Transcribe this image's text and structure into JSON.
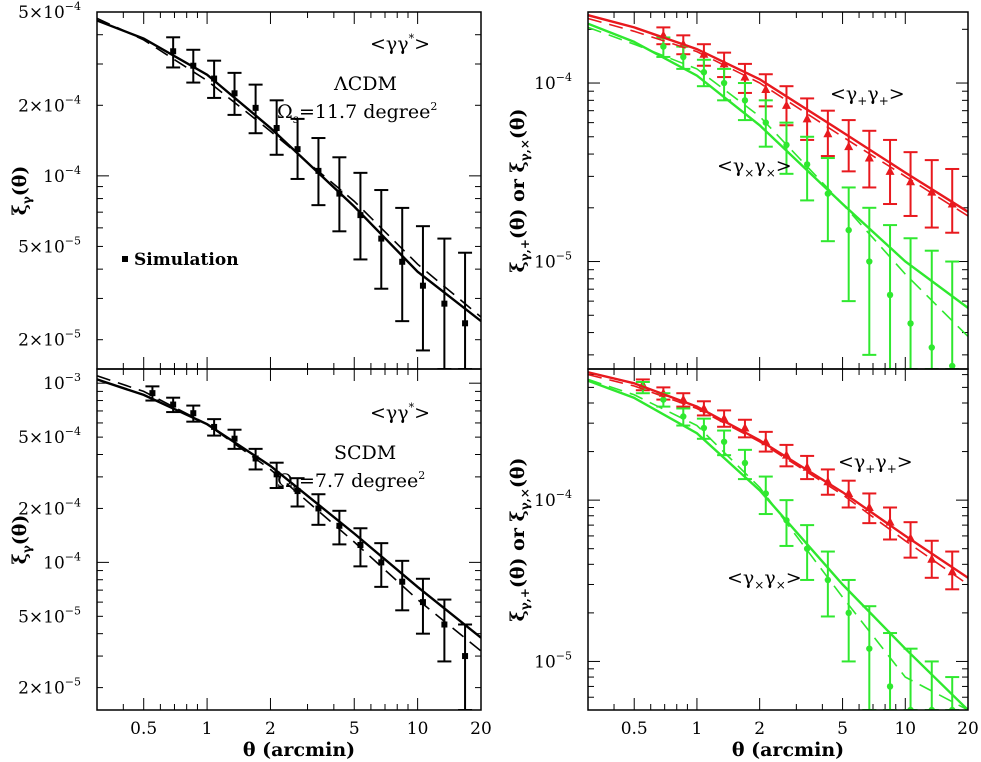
{
  "colors": {
    "black": "#000000",
    "red": "#e8191e",
    "green": "#2fe82f"
  },
  "x_tick_labels": [
    "0.5",
    "1",
    "2",
    "5",
    "10",
    "20"
  ],
  "x_label": "θ (arcmin)",
  "chart_data": [
    {
      "type": "scatter",
      "panel": "top-left",
      "xlim": [
        0.3,
        20
      ],
      "ylim": [
        1.5e-05,
        0.0005
      ],
      "xscale": "log",
      "yscale": "log",
      "ylabel": "ξγ(θ)",
      "y_ticks": [
        {
          "value": 0.0005,
          "label": "5×10",
          "exp": "−4"
        },
        {
          "value": 0.0002,
          "label": "2×10",
          "exp": "−4"
        },
        {
          "value": 0.0001,
          "label": "10",
          "exp": "−4"
        },
        {
          "value": 5e-05,
          "label": "5×10",
          "exp": "−5"
        },
        {
          "value": 2e-05,
          "label": "2×10",
          "exp": "−5"
        }
      ],
      "annotations": {
        "estimator": "<γγ*>",
        "model": "ΛCDM",
        "area": "Ωs=11.7 degree2",
        "legend": "Simulation"
      },
      "series": [
        {
          "name": "Simulation",
          "color": "black",
          "marker": "square",
          "x": [
            0.69,
            0.86,
            1.08,
            1.35,
            1.7,
            2.14,
            2.69,
            3.38,
            4.25,
            5.35,
            6.72,
            8.45,
            10.6,
            13.4,
            16.8
          ],
          "y": [
            0.00034,
            0.000295,
            0.00026,
            0.000225,
            0.000195,
            0.00016,
            0.00013,
            0.000105,
            8.4e-05,
            6.8e-05,
            5.4e-05,
            4.3e-05,
            3.4e-05,
            2.85e-05,
            2.35e-05
          ],
          "err_lo": [
            0.00029,
            0.00025,
            0.000215,
            0.000182,
            0.000152,
            0.000123,
            9.7e-05,
            7.5e-05,
            5.8e-05,
            4.4e-05,
            3.3e-05,
            2.4e-05,
            1.8e-05,
            1.5e-05,
            1.5e-05
          ],
          "err_hi": [
            0.00039,
            0.000345,
            0.00031,
            0.000275,
            0.000245,
            0.00021,
            0.000175,
            0.000145,
            0.00012,
            0.000103,
            8.7e-05,
            7.3e-05,
            6.1e-05,
            5.4e-05,
            4.7e-05
          ]
        },
        {
          "name": "model-solid",
          "color": "black",
          "style": "solid",
          "x": [
            0.3,
            0.5,
            1,
            2,
            5,
            10,
            20
          ],
          "y": [
            0.00046,
            0.000385,
            0.00027,
            0.00016,
            7.4e-05,
            3.9e-05,
            2.4e-05
          ]
        },
        {
          "name": "model-dashed",
          "color": "black",
          "style": "dashed",
          "x": [
            0.3,
            0.5,
            1,
            2,
            5,
            10,
            20
          ],
          "y": [
            0.00047,
            0.00038,
            0.000255,
            0.000155,
            7.8e-05,
            4.2e-05,
            2.5e-05
          ]
        }
      ]
    },
    {
      "type": "scatter",
      "panel": "top-right",
      "xlim": [
        0.3,
        20
      ],
      "ylim": [
        2.5e-06,
        0.00025
      ],
      "xscale": "log",
      "yscale": "log",
      "ylabel": "ξγ,+(θ) or ξγ,×(θ)",
      "y_ticks": [
        {
          "value": 0.0001,
          "label": "10",
          "exp": "−4"
        },
        {
          "value": 1e-05,
          "label": "10",
          "exp": "−5"
        }
      ],
      "annotations": {
        "plus": "<γ+γ+>",
        "cross": "<γ×γ×>"
      },
      "series": [
        {
          "name": "<γ+γ+>",
          "color": "red",
          "marker": "triangle",
          "x": [
            0.69,
            0.86,
            1.08,
            1.35,
            1.7,
            2.14,
            2.69,
            3.38,
            4.25,
            5.35,
            6.72,
            8.45,
            10.6,
            13.4,
            16.8
          ],
          "y": [
            0.000185,
            0.000165,
            0.000145,
            0.000128,
            0.000108,
            9.2e-05,
            7.5e-05,
            6.3e-05,
            5.2e-05,
            4.4e-05,
            3.8e-05,
            3.2e-05,
            2.8e-05,
            2.45e-05,
            2.1e-05
          ],
          "err_lo": [
            0.000165,
            0.000145,
            0.000125,
            0.000108,
            8.8e-05,
            7.4e-05,
            5.8e-05,
            4.8e-05,
            3.9e-05,
            3.2e-05,
            2.6e-05,
            2.1e-05,
            1.8e-05,
            1.55e-05,
            1.45e-05
          ],
          "err_hi": [
            0.000205,
            0.000185,
            0.000165,
            0.000148,
            0.000128,
            0.000112,
            9.6e-05,
            8.2e-05,
            7e-05,
            6.2e-05,
            5.4e-05,
            4.8e-05,
            4.1e-05,
            3.7e-05,
            3.3e-05
          ]
        },
        {
          "name": "<γ×γ×>",
          "color": "green",
          "marker": "circle",
          "x": [
            0.69,
            0.86,
            1.08,
            1.35,
            1.7,
            2.14,
            2.69,
            3.38,
            4.25,
            5.35,
            6.72,
            8.45,
            10.6,
            13.4,
            16.8
          ],
          "y": [
            0.00016,
            0.00014,
            0.000115,
            0.0001,
            8e-05,
            6e-05,
            4.5e-05,
            3.5e-05,
            2.4e-05,
            1.5e-05,
            1e-05,
            6.5e-06,
            4.5e-06,
            3.3e-06,
            2.6e-06
          ],
          "err_lo": [
            0.00014,
            0.00012,
            9.6e-05,
            8e-05,
            6.2e-05,
            4.4e-05,
            3.1e-05,
            2.2e-05,
            1.3e-05,
            6e-06,
            3e-06,
            2.5e-06,
            2.5e-06,
            2.5e-06,
            2.5e-06
          ],
          "err_hi": [
            0.00018,
            0.00016,
            0.000135,
            0.00012,
            0.0001,
            8e-05,
            6e-05,
            5e-05,
            3.8e-05,
            2.6e-05,
            2e-05,
            1.6e-05,
            1.35e-05,
            1.15e-05,
            1e-05
          ]
        },
        {
          "name": "plus-solid",
          "color": "red",
          "style": "solid",
          "x": [
            0.3,
            0.5,
            1,
            2,
            5,
            10,
            20
          ],
          "y": [
            0.00024,
            0.000205,
            0.000155,
            0.000105,
            5.3e-05,
            3.15e-05,
            1.9e-05
          ]
        },
        {
          "name": "plus-dashed",
          "color": "red",
          "style": "dashed",
          "x": [
            0.3,
            0.5,
            1,
            2,
            5,
            10,
            20
          ],
          "y": [
            0.00023,
            0.000195,
            0.00015,
            0.0001,
            5e-05,
            3e-05,
            1.8e-05
          ]
        },
        {
          "name": "cross-solid",
          "color": "green",
          "style": "solid",
          "x": [
            0.3,
            0.5,
            1,
            2,
            5,
            10,
            20
          ],
          "y": [
            0.000215,
            0.00017,
            0.00011,
            5.8e-05,
            2.1e-05,
            1e-05,
            5.5e-06
          ]
        },
        {
          "name": "cross-dashed",
          "color": "green",
          "style": "dashed",
          "x": [
            0.3,
            0.5,
            1,
            2,
            5,
            10,
            20
          ],
          "y": [
            0.000205,
            0.000165,
            0.00012,
            6.5e-05,
            2.1e-05,
            8.5e-06,
            3.8e-06
          ]
        }
      ]
    },
    {
      "type": "scatter",
      "panel": "bottom-left",
      "xlim": [
        0.3,
        20
      ],
      "ylim": [
        1.5e-05,
        0.0012
      ],
      "xscale": "log",
      "yscale": "log",
      "ylabel": "ξγ(θ)",
      "y_ticks": [
        {
          "value": 0.001,
          "label": "10",
          "exp": "−3"
        },
        {
          "value": 0.0005,
          "label": "5×10",
          "exp": "−4"
        },
        {
          "value": 0.0002,
          "label": "2×10",
          "exp": "−4"
        },
        {
          "value": 0.0001,
          "label": "10",
          "exp": "−4"
        },
        {
          "value": 5e-05,
          "label": "5×10",
          "exp": "−5"
        },
        {
          "value": 2e-05,
          "label": "2×10",
          "exp": "−5"
        }
      ],
      "annotations": {
        "estimator": "<γγ*>",
        "model": "SCDM",
        "area": "Ωs=7.7 degree2"
      },
      "series": [
        {
          "name": "Simulation",
          "color": "black",
          "marker": "square",
          "x": [
            0.55,
            0.69,
            0.86,
            1.08,
            1.35,
            1.7,
            2.14,
            2.69,
            3.38,
            4.25,
            5.35,
            6.72,
            8.45,
            10.6,
            13.4,
            16.8
          ],
          "y": [
            0.00088,
            0.00076,
            0.00068,
            0.00057,
            0.00049,
            0.00038,
            0.00031,
            0.00025,
            0.0002,
            0.00016,
            0.000125,
            0.0001,
            7.8e-05,
            6e-05,
            4.5e-05,
            3e-05
          ],
          "err_lo": [
            0.0008,
            0.00069,
            0.00061,
            0.00051,
            0.00043,
            0.00033,
            0.00026,
            0.000205,
            0.000162,
            0.000126,
            9.5e-05,
            7.3e-05,
            5.4e-05,
            4e-05,
            2.8e-05,
            1.5e-05
          ],
          "err_hi": [
            0.00096,
            0.00083,
            0.00075,
            0.00063,
            0.00055,
            0.00043,
            0.00036,
            0.000295,
            0.00024,
            0.000194,
            0.000155,
            0.000128,
            0.000102,
            8.1e-05,
            6.2e-05,
            4.5e-05
          ]
        },
        {
          "name": "model-solid",
          "color": "black",
          "style": "solid",
          "x": [
            0.3,
            0.5,
            1,
            2,
            5,
            10,
            20
          ],
          "y": [
            0.00105,
            0.00086,
            0.00059,
            0.000345,
            0.000145,
            7.3e-05,
            3.8e-05
          ]
        },
        {
          "name": "model-dashed",
          "color": "black",
          "style": "dashed",
          "x": [
            0.3,
            0.5,
            1,
            2,
            5,
            10,
            20
          ],
          "y": [
            0.0011,
            0.0009,
            0.00059,
            0.00033,
            0.00013,
            6.2e-05,
            3.2e-05
          ]
        }
      ]
    },
    {
      "type": "scatter",
      "panel": "bottom-right",
      "xlim": [
        0.3,
        20
      ],
      "ylim": [
        5e-06,
        0.00065
      ],
      "xscale": "log",
      "yscale": "log",
      "ylabel": "ξγ,+(θ) or ξγ,×(θ)",
      "y_ticks": [
        {
          "value": 0.0001,
          "label": "10",
          "exp": "−4"
        },
        {
          "value": 1e-05,
          "label": "10",
          "exp": "−5"
        }
      ],
      "annotations": {
        "plus": "<γ+γ+>",
        "cross": "<γ×γ×>"
      },
      "series": [
        {
          "name": "<γ+γ+>",
          "color": "red",
          "marker": "triangle",
          "x": [
            0.55,
            0.69,
            0.86,
            1.08,
            1.35,
            1.7,
            2.14,
            2.69,
            3.38,
            4.25,
            5.35,
            6.72,
            8.45,
            10.6,
            13.4,
            16.8
          ],
          "y": [
            0.00052,
            0.00046,
            0.00042,
            0.00037,
            0.00032,
            0.00028,
            0.00023,
            0.00019,
            0.00016,
            0.00013,
            0.00011,
            9e-05,
            7.3e-05,
            5.8e-05,
            4.3e-05,
            3.6e-05
          ],
          "err_lo": [
            0.00048,
            0.00042,
            0.00038,
            0.000335,
            0.000285,
            0.000245,
            0.0002,
            0.000162,
            0.000135,
            0.000108,
            9e-05,
            7.2e-05,
            5.7e-05,
            4.4e-05,
            3.3e-05,
            2.8e-05
          ],
          "err_hi": [
            0.00056,
            0.0005,
            0.00046,
            0.00041,
            0.00036,
            0.000315,
            0.000265,
            0.00022,
            0.000188,
            0.000155,
            0.000132,
            0.00011,
            9e-05,
            7.3e-05,
            5.6e-05,
            4.8e-05
          ]
        },
        {
          "name": "<γ×γ×>",
          "color": "green",
          "marker": "circle",
          "x": [
            0.55,
            0.69,
            0.86,
            1.08,
            1.35,
            1.7,
            2.14,
            2.69,
            3.38,
            4.25,
            5.35,
            6.72,
            8.45,
            10.6,
            13.4,
            16.8
          ],
          "y": [
            0.0005,
            0.00042,
            0.00033,
            0.00028,
            0.00023,
            0.00017,
            0.00011,
            7.5e-05,
            5e-05,
            3.2e-05,
            2e-05,
            1.2e-05,
            7e-06,
            5e-06,
            5e-06,
            5e-06
          ],
          "err_lo": [
            0.00046,
            0.00038,
            0.00029,
            0.00024,
            0.00019,
            0.000135,
            8.2e-05,
            5.2e-05,
            3.2e-05,
            1.9e-05,
            1e-05,
            5e-06,
            5e-06,
            5e-06,
            5e-06,
            5e-06
          ],
          "err_hi": [
            0.00054,
            0.00046,
            0.00037,
            0.00032,
            0.00027,
            0.000205,
            0.00014,
            0.0001,
            7e-05,
            4.8e-05,
            3.2e-05,
            2.2e-05,
            1.5e-05,
            1.2e-05,
            1e-05,
            8e-06
          ]
        },
        {
          "name": "plus-solid",
          "color": "red",
          "style": "solid",
          "x": [
            0.3,
            0.5,
            1,
            2,
            5,
            10,
            20
          ],
          "y": [
            0.00062,
            0.00053,
            0.00038,
            0.000235,
            0.000112,
            6e-05,
            3.3e-05
          ]
        },
        {
          "name": "plus-dashed",
          "color": "red",
          "style": "dashed",
          "x": [
            0.3,
            0.5,
            1,
            2,
            5,
            10,
            20
          ],
          "y": [
            0.0006,
            0.00051,
            0.00037,
            0.00023,
            0.000108,
            5.6e-05,
            3e-05
          ]
        },
        {
          "name": "cross-solid",
          "color": "green",
          "style": "solid",
          "x": [
            0.3,
            0.5,
            1,
            2,
            5,
            10,
            20
          ],
          "y": [
            0.00055,
            0.00043,
            0.00026,
            0.000115,
            3e-05,
            1.2e-05,
            5e-06
          ]
        },
        {
          "name": "cross-dashed",
          "color": "green",
          "style": "dashed",
          "x": [
            0.3,
            0.5,
            1,
            2,
            5,
            10,
            20
          ],
          "y": [
            0.00056,
            0.00045,
            0.00029,
            0.00012,
            2.5e-05,
            8e-06,
            5e-06
          ]
        }
      ]
    }
  ]
}
